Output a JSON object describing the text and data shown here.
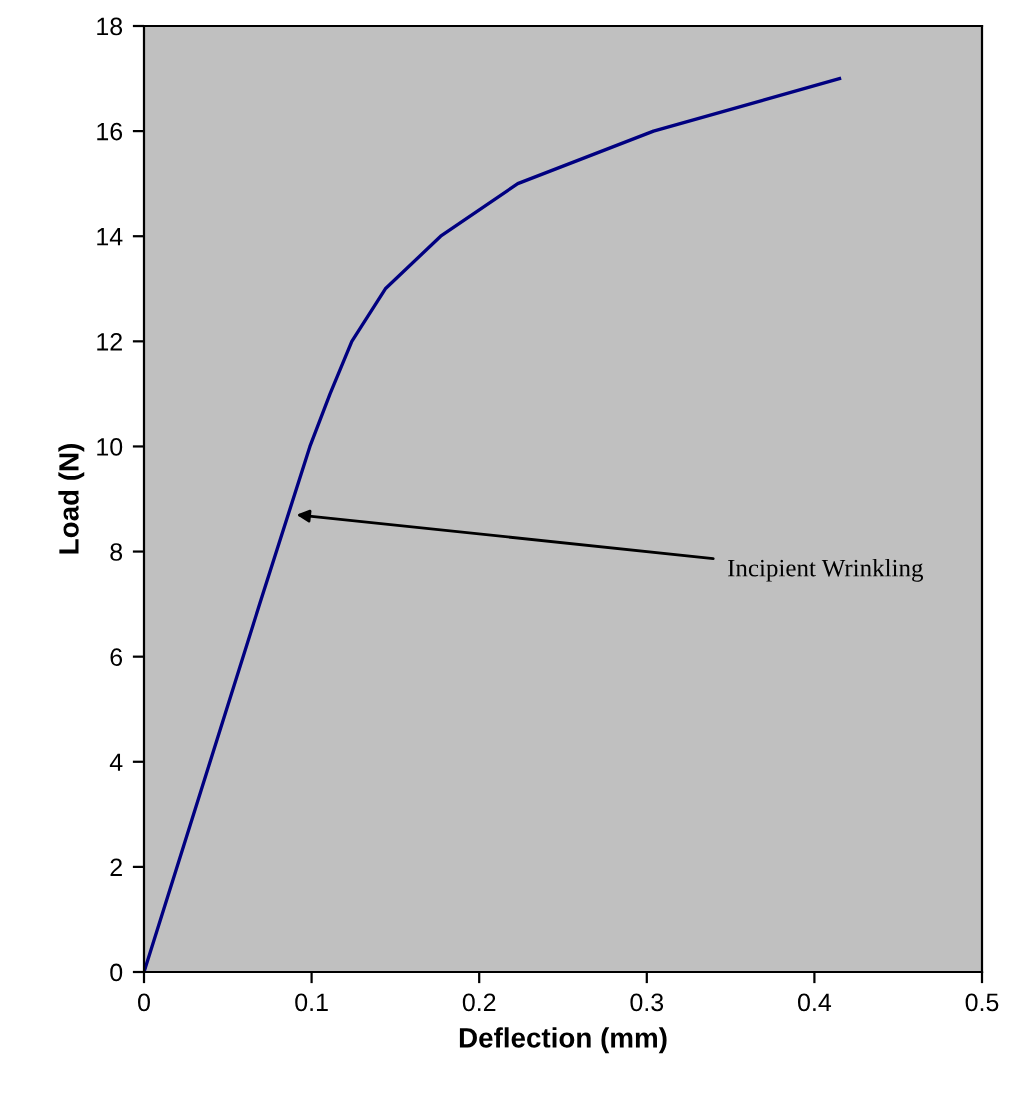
{
  "chart_data": {
    "type": "line",
    "xlabel": "Deflection (mm)",
    "ylabel": "Load (N)",
    "x": [
      0,
      0.069,
      0.099,
      0.111,
      0.124,
      0.144,
      0.177,
      0.223,
      0.304,
      0.415
    ],
    "series": [
      {
        "color": "#000080",
        "values": [
          0,
          7,
          10,
          11,
          12,
          13,
          14,
          15,
          16,
          17
        ]
      }
    ],
    "xlim": [
      0,
      0.5
    ],
    "xticks": [
      0,
      0.1,
      0.2,
      0.3,
      0.4,
      0.5
    ],
    "ylim": [
      0,
      18
    ],
    "yticks": [
      0,
      2,
      4,
      6,
      8,
      10,
      12,
      14,
      16,
      18
    ],
    "grid": false,
    "legend": false,
    "marker": "none",
    "line_style": "solid",
    "annotations": [
      {
        "text": "Incipient Wrinkling",
        "x": 0.091,
        "y": 8.7
      }
    ]
  }
}
